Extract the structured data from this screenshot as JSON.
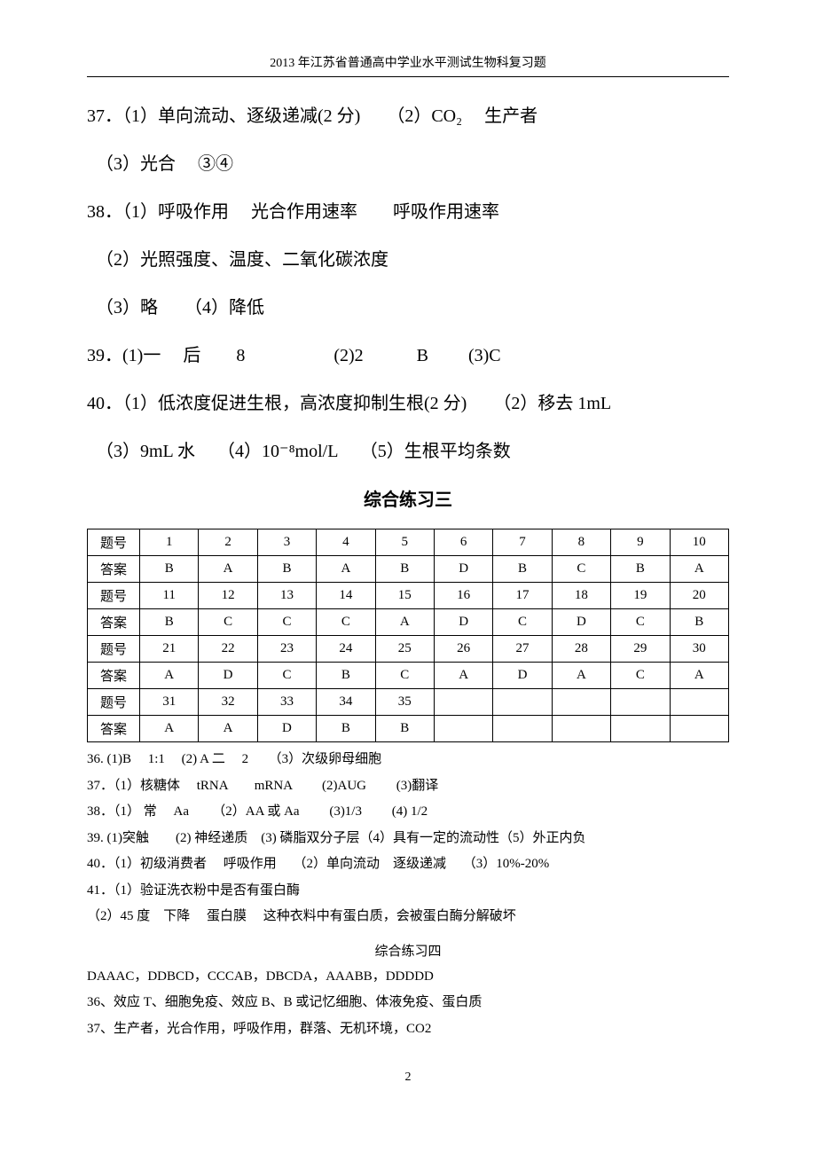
{
  "header": "2013 年江苏省普通高中学业水平测试生物科复习题",
  "page_number": "2",
  "main_answers": [
    {
      "line": "37．（1）单向流动、逐级递减(2 分)　　（2）CO₂　 生产者"
    },
    {
      "line": "（3）光合　 ③④",
      "sub": true
    },
    {
      "line": "38．（1）呼吸作用　 光合作用速率　　呼吸作用速率"
    },
    {
      "line": "（2）光照强度、温度、二氧化碳浓度",
      "sub": true
    },
    {
      "line": "（3）略　　（4）降低",
      "sub": true
    },
    {
      "line": "39．(1)一　 后　　8　　　　　(2)2　　　B　 　(3)C"
    },
    {
      "line": "40．（1）低浓度促进生根，高浓度抑制生根(2 分)　　（2）移去 1mL"
    },
    {
      "line": "（3）9mL 水　 （4）10⁻⁸mol/L　 （5）生根平均条数",
      "sub": true
    }
  ],
  "section_title": "综合练习三",
  "table": {
    "label_qn": "题号",
    "label_ans": "答案",
    "rows": [
      {
        "nums": [
          "1",
          "2",
          "3",
          "4",
          "5",
          "6",
          "7",
          "8",
          "9",
          "10"
        ],
        "ans": [
          "B",
          "A",
          "B",
          "A",
          "B",
          "D",
          "B",
          "C",
          "B",
          "A"
        ]
      },
      {
        "nums": [
          "11",
          "12",
          "13",
          "14",
          "15",
          "16",
          "17",
          "18",
          "19",
          "20"
        ],
        "ans": [
          "B",
          "C",
          "C",
          "C",
          "A",
          "D",
          "C",
          "D",
          "C",
          "B"
        ]
      },
      {
        "nums": [
          "21",
          "22",
          "23",
          "24",
          "25",
          "26",
          "27",
          "28",
          "29",
          "30"
        ],
        "ans": [
          "A",
          "D",
          "C",
          "B",
          "C",
          "A",
          "D",
          "A",
          "C",
          "A"
        ]
      },
      {
        "nums": [
          "31",
          "32",
          "33",
          "34",
          "35",
          "",
          "",
          "",
          "",
          ""
        ],
        "ans": [
          "A",
          "A",
          "D",
          "B",
          "B",
          "",
          "",
          "",
          "",
          ""
        ]
      }
    ]
  },
  "small_answers_3": [
    "36. (1)B　 1:1　 (2) A 二　 2　　（3）次级卵母细胞",
    "37．（1）核糖体　 tRNA　　mRNA　　 (2)AUG　　 (3)翻译",
    "38．（1） 常　 Aa 　　（2）AA 或 Aa　　 (3)1/3　　 (4) 1/2",
    "39. (1)突触　　(2) 神经递质　(3) 磷脂双分子层（4）具有一定的流动性（5）外正内负",
    "40．（1）初级消费者　 呼吸作用　 （2）单向流动　逐级递减　 （3）10%-20%",
    "41．（1）验证洗衣粉中是否有蛋白酶",
    "（2）45 度　下降　 蛋白膜　 这种衣料中有蛋白质，会被蛋白酶分解破坏"
  ],
  "section_subtitle": "综合练习四",
  "small_answers_4": [
    "DAAAC，DDBCD，CCCAB，DBCDA，AAABB，DDDDD",
    "36、效应 T、细胞免疫、效应 B、B 或记忆细胞、体液免疫、蛋白质",
    "37、生产者，光合作用，呼吸作用，群落、无机环境，CO2"
  ]
}
